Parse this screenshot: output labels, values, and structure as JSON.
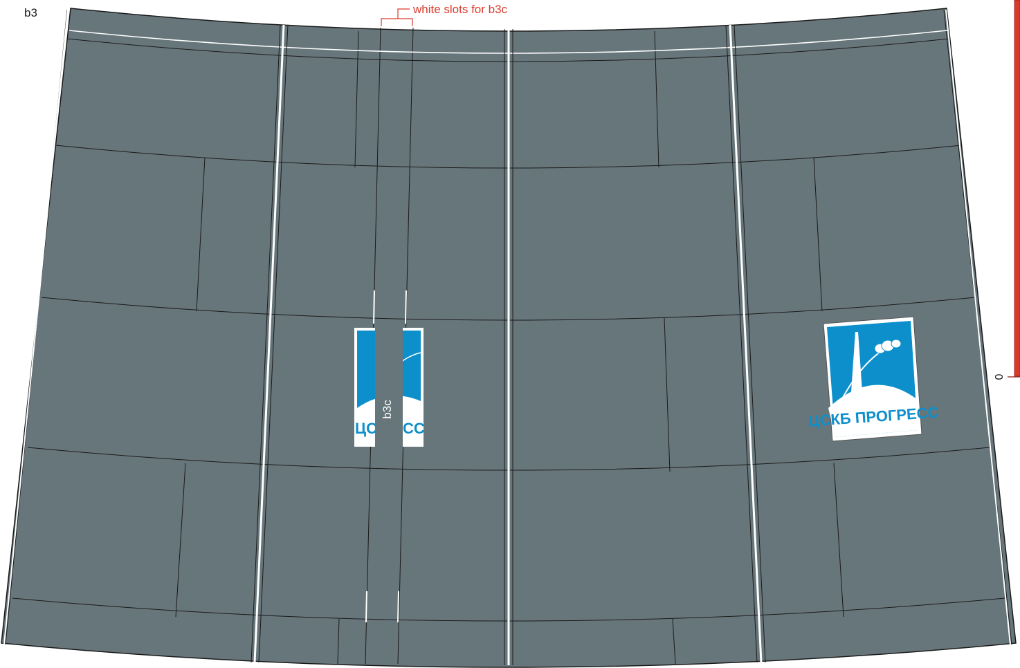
{
  "part_label": "b3",
  "annotation": "white slots for b3c",
  "strip_label": "b3c",
  "scale_label": "0",
  "logo_text": "ЦСКБ ПРОГРЕСС",
  "logo_text_cut_left": "ЦСК",
  "logo_text_cut_right": "СС",
  "colors": {
    "panel": "#67767b",
    "outline": "#1a1a1a",
    "slot": "#ffffff",
    "accent": "#d93a2b",
    "logo_blue": "#0d8fcb"
  },
  "icons": [
    "rocket-icon",
    "soyuz-capsule-icon"
  ]
}
